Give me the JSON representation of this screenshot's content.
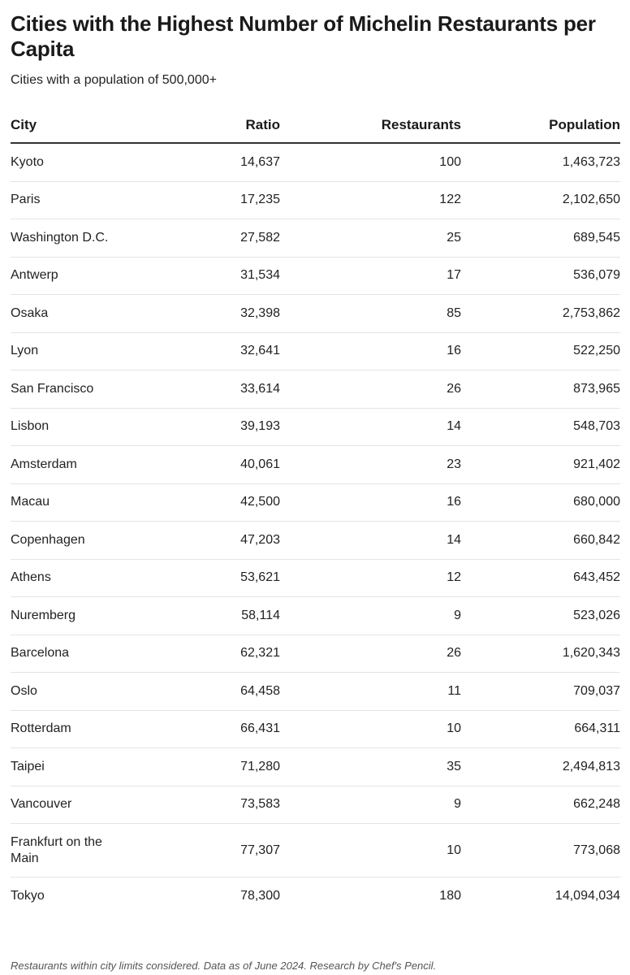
{
  "chart_data": {
    "type": "table",
    "title": "Cities with the Highest Number of Michelin Restaurants per Capita",
    "subtitle": "Cities with a population of 500,000+",
    "columns": [
      "City",
      "Ratio",
      "Restaurants",
      "Population"
    ],
    "rows": [
      {
        "city": "Kyoto",
        "ratio": "14,637",
        "restaurants": "100",
        "population": "1,463,723"
      },
      {
        "city": "Paris",
        "ratio": "17,235",
        "restaurants": "122",
        "population": "2,102,650"
      },
      {
        "city": "Washington D.C.",
        "ratio": "27,582",
        "restaurants": "25",
        "population": "689,545"
      },
      {
        "city": "Antwerp",
        "ratio": "31,534",
        "restaurants": "17",
        "population": "536,079"
      },
      {
        "city": "Osaka",
        "ratio": "32,398",
        "restaurants": "85",
        "population": "2,753,862"
      },
      {
        "city": "Lyon",
        "ratio": "32,641",
        "restaurants": "16",
        "population": "522,250"
      },
      {
        "city": "San Francisco",
        "ratio": "33,614",
        "restaurants": "26",
        "population": "873,965"
      },
      {
        "city": "Lisbon",
        "ratio": "39,193",
        "restaurants": "14",
        "population": "548,703"
      },
      {
        "city": "Amsterdam",
        "ratio": "40,061",
        "restaurants": "23",
        "population": "921,402"
      },
      {
        "city": "Macau",
        "ratio": "42,500",
        "restaurants": "16",
        "population": "680,000"
      },
      {
        "city": "Copenhagen",
        "ratio": "47,203",
        "restaurants": "14",
        "population": "660,842"
      },
      {
        "city": "Athens",
        "ratio": "53,621",
        "restaurants": "12",
        "population": "643,452"
      },
      {
        "city": "Nuremberg",
        "ratio": "58,114",
        "restaurants": "9",
        "population": "523,026"
      },
      {
        "city": "Barcelona",
        "ratio": "62,321",
        "restaurants": "26",
        "population": "1,620,343"
      },
      {
        "city": "Oslo",
        "ratio": "64,458",
        "restaurants": "11",
        "population": "709,037"
      },
      {
        "city": "Rotterdam",
        "ratio": "66,431",
        "restaurants": "10",
        "population": "664,311"
      },
      {
        "city": "Taipei",
        "ratio": "71,280",
        "restaurants": "35",
        "population": "2,494,813"
      },
      {
        "city": "Vancouver",
        "ratio": "73,583",
        "restaurants": "9",
        "population": "662,248"
      },
      {
        "city": "Frankfurt on the Main",
        "ratio": "77,307",
        "restaurants": "10",
        "population": "773,068"
      },
      {
        "city": "Tokyo",
        "ratio": "78,300",
        "restaurants": "180",
        "population": "14,094,034"
      }
    ],
    "footnote": "Restaurants within city limits considered. Data as of June 2024. Research by Chef's Pencil."
  }
}
